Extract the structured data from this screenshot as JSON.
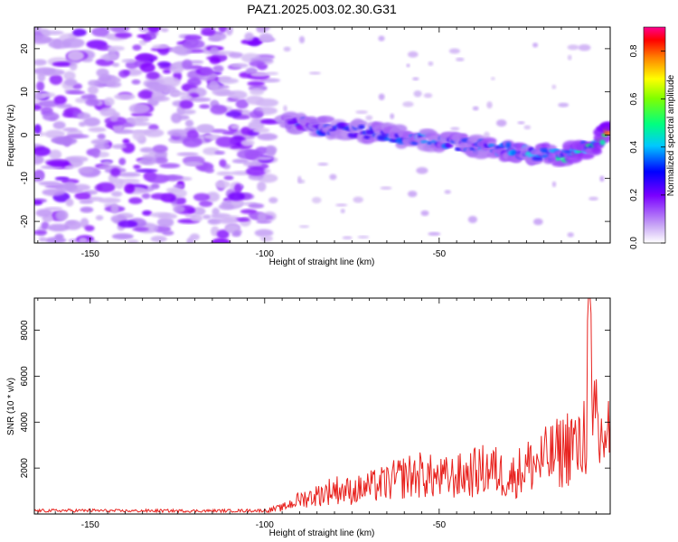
{
  "figure_title": "PAZ1.2025.003.02.30.G31",
  "chart_data": [
    {
      "type": "heatmap",
      "title": "PAZ1.2025.003.02.30.G31",
      "xlabel": "Height of straight line (km)",
      "ylabel": "Frequency (Hz)",
      "xlim": [
        -166,
        -1
      ],
      "ylim": [
        -25,
        25
      ],
      "x_ticks": [
        -150,
        -100,
        -50
      ],
      "y_ticks": [
        -20,
        -10,
        0,
        10,
        20
      ],
      "colorbar": {
        "label": "Normalized spectral amplitude",
        "range": [
          0,
          0.9
        ],
        "ticks": [
          0.0,
          0.2,
          0.4,
          0.6,
          0.8
        ],
        "colormap": [
          "#e0d0f5",
          "#8000ff",
          "#0000ff",
          "#00ffff",
          "#00ff00",
          "#ffff00",
          "#ff8000",
          "#ff0000",
          "#ff00a0"
        ]
      },
      "signal_track": {
        "x": [
          -95,
          -85,
          -75,
          -65,
          -55,
          -45,
          -35,
          -25,
          -15,
          -5,
          -1
        ],
        "frequency": [
          3,
          2,
          1,
          0,
          -1,
          -2,
          -3,
          -4,
          -5,
          -2,
          1
        ],
        "amplitude": [
          0.3,
          0.4,
          0.35,
          0.4,
          0.45,
          0.4,
          0.45,
          0.5,
          0.55,
          0.6,
          0.85
        ]
      },
      "noise_region": {
        "x_range": [
          -166,
          -100
        ],
        "frequency_range": [
          -25,
          25
        ],
        "amplitude": 0.15
      }
    },
    {
      "type": "line",
      "xlabel": "Height of straight line (km)",
      "ylabel": "SNR (10 * v/v)",
      "xlim": [
        -166,
        -1
      ],
      "ylim": [
        0,
        9400
      ],
      "x_ticks": [
        -150,
        -100,
        -50
      ],
      "y_ticks": [
        2000,
        4000,
        6000,
        8000
      ],
      "color": "#e8221e",
      "x": [
        -166,
        -150,
        -140,
        -130,
        -120,
        -110,
        -100,
        -95,
        -90,
        -85,
        -80,
        -75,
        -70,
        -65,
        -60,
        -55,
        -50,
        -45,
        -40,
        -35,
        -30,
        -25,
        -20,
        -15,
        -12,
        -10,
        -8,
        -7,
        -6,
        -5,
        -4,
        -3,
        -2,
        -1
      ],
      "values": [
        150,
        160,
        140,
        150,
        140,
        150,
        160,
        300,
        700,
        900,
        1200,
        1100,
        1300,
        1500,
        1800,
        1900,
        1700,
        1800,
        2000,
        2200,
        1700,
        2300,
        2600,
        3000,
        3500,
        3000,
        4200,
        9400,
        3200,
        5000,
        3200,
        4000,
        3800,
        4100
      ]
    }
  ]
}
